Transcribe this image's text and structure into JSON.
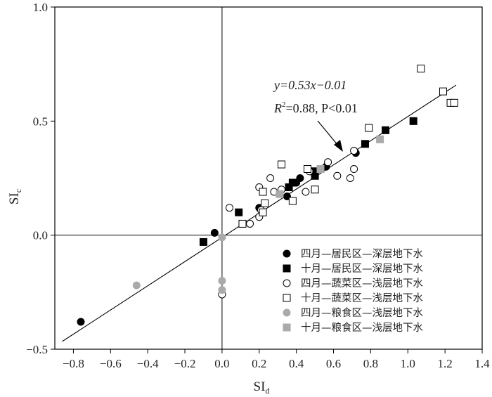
{
  "chart_data": {
    "type": "scatter",
    "title": "",
    "xlabel": "SI",
    "xlabel_sub": "d",
    "ylabel": "SI",
    "ylabel_sub": "c",
    "xlim": [
      -0.9,
      1.4
    ],
    "ylim": [
      -0.5,
      1.0
    ],
    "x_ticks": [
      -0.8,
      -0.6,
      -0.4,
      -0.2,
      0.0,
      0.2,
      0.4,
      0.6,
      0.8,
      1.0,
      1.2,
      1.4
    ],
    "x_tick_labels": [
      "−0.8",
      "−0.6",
      "−0.4",
      "−0.2",
      "0.0",
      "0.2",
      "0.4",
      "0.6",
      "0.8",
      "1.0",
      "1.2",
      "1.4"
    ],
    "y_ticks": [
      -0.5,
      0.0,
      0.5,
      1.0
    ],
    "y_tick_labels": [
      "−0.5",
      "0.0",
      "0.5",
      "1.0"
    ],
    "grid": false,
    "legend_position": "bottom-right",
    "reference_lines": {
      "x": 0,
      "y": 0
    },
    "annotation": {
      "equation": "y=0.53x−0.01",
      "r2_label": "R",
      "r2_sup": "2",
      "r2_rest": "=0.88, P<0.01"
    },
    "fit_line": {
      "slope": 0.53,
      "intercept": -0.01,
      "x_range": [
        -0.86,
        1.26
      ]
    },
    "series": [
      {
        "name": "四月—居民区—深层地下水",
        "marker": "circle",
        "filled": true,
        "color": "#000000",
        "points": [
          [
            -0.76,
            -0.38
          ],
          [
            -0.04,
            0.01
          ],
          [
            0.2,
            0.12
          ],
          [
            0.35,
            0.17
          ],
          [
            0.4,
            0.23
          ],
          [
            0.42,
            0.25
          ],
          [
            0.56,
            0.3
          ],
          [
            0.72,
            0.36
          ]
        ]
      },
      {
        "name": "十月—居民区—深层地下水",
        "marker": "square",
        "filled": true,
        "color": "#000000",
        "points": [
          [
            -0.1,
            -0.03
          ],
          [
            0.09,
            0.1
          ],
          [
            0.36,
            0.21
          ],
          [
            0.38,
            0.23
          ],
          [
            0.49,
            0.28
          ],
          [
            0.5,
            0.26
          ],
          [
            0.77,
            0.4
          ],
          [
            0.88,
            0.46
          ],
          [
            1.03,
            0.5
          ]
        ]
      },
      {
        "name": "四月—蔬菜区—浅层地下水",
        "marker": "circle",
        "filled": false,
        "color": "#000000",
        "points": [
          [
            0.04,
            0.12
          ],
          [
            0.0,
            -0.26
          ],
          [
            0.15,
            0.05
          ],
          [
            0.2,
            0.08
          ],
          [
            0.21,
            0.11
          ],
          [
            0.2,
            0.21
          ],
          [
            0.26,
            0.25
          ],
          [
            0.28,
            0.19
          ],
          [
            0.32,
            0.2
          ],
          [
            0.45,
            0.19
          ],
          [
            0.47,
            0.28
          ],
          [
            0.57,
            0.32
          ],
          [
            0.62,
            0.26
          ],
          [
            0.69,
            0.25
          ],
          [
            0.71,
            0.29
          ],
          [
            0.71,
            0.37
          ]
        ]
      },
      {
        "name": "十月—蔬菜区—浅层地下水",
        "marker": "square",
        "filled": false,
        "color": "#000000",
        "points": [
          [
            0.11,
            0.05
          ],
          [
            0.22,
            0.1
          ],
          [
            0.23,
            0.14
          ],
          [
            0.22,
            0.19
          ],
          [
            0.32,
            0.31
          ],
          [
            0.38,
            0.15
          ],
          [
            0.46,
            0.29
          ],
          [
            0.5,
            0.2
          ],
          [
            0.79,
            0.47
          ],
          [
            1.07,
            0.73
          ],
          [
            1.19,
            0.63
          ],
          [
            1.23,
            0.58
          ],
          [
            1.25,
            0.58
          ]
        ]
      },
      {
        "name": "四月—粮食区—浅层地下水",
        "marker": "circle",
        "filled": true,
        "color": "#aaaaaa",
        "points": [
          [
            -0.46,
            -0.22
          ],
          [
            0.0,
            -0.01
          ],
          [
            0.0,
            -0.2
          ],
          [
            0.0,
            -0.24
          ]
        ]
      },
      {
        "name": "十月—粮食区—浅层地下水",
        "marker": "square",
        "filled": true,
        "color": "#aaaaaa",
        "points": [
          [
            0.31,
            0.18
          ],
          [
            0.53,
            0.29
          ],
          [
            0.85,
            0.42
          ]
        ]
      }
    ]
  }
}
